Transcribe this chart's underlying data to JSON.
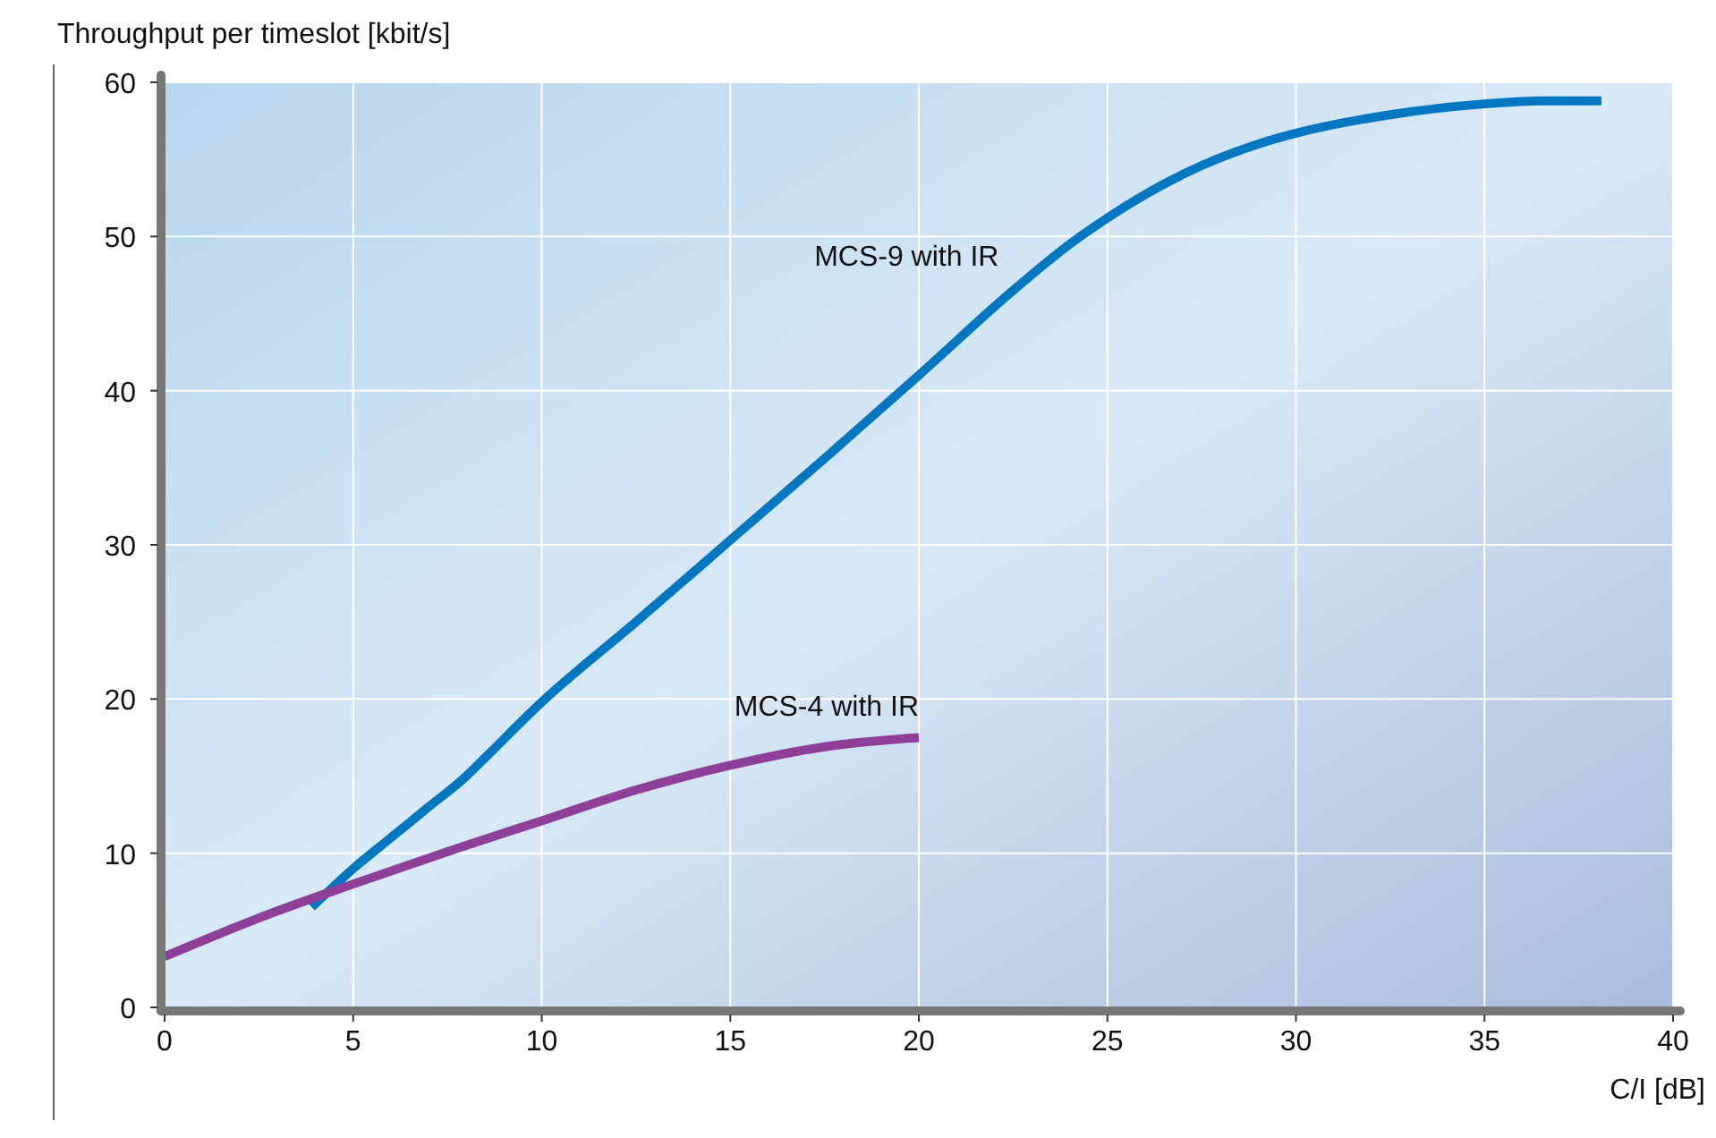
{
  "chart_data": {
    "type": "line",
    "ylabel": "Throughput per timeslot [kbit/s]",
    "xlabel": "C/I [dB]",
    "xlim": [
      0,
      40
    ],
    "ylim": [
      0,
      60
    ],
    "xticks": [
      0,
      5,
      10,
      15,
      20,
      25,
      30,
      35,
      40
    ],
    "yticks": [
      0,
      10,
      20,
      30,
      40,
      50,
      60
    ],
    "grid": true,
    "series": [
      {
        "name": "MCS-9 with IR",
        "color": "#0077c0",
        "x": [
          3.9,
          5,
          6,
          7,
          8,
          8.5,
          10,
          12.5,
          15,
          17.5,
          20,
          22.5,
          24,
          25,
          26.5,
          27.5,
          29,
          30,
          32.5,
          35,
          36.5,
          38.1
        ],
        "values": [
          6.5,
          9,
          11,
          13,
          15,
          16.2,
          19.8,
          25,
          30.3,
          35.6,
          41,
          46.5,
          49.5,
          51.2,
          53.4,
          54.6,
          56,
          56.7,
          57.9,
          58.6,
          58.8,
          58.8
        ]
      },
      {
        "name": "MCS-4 with IR",
        "color": "#8e3f98",
        "x": [
          0,
          2.5,
          5,
          7.5,
          10,
          12.5,
          15,
          17.5,
          20
        ],
        "values": [
          3.3,
          5.8,
          8,
          10.1,
          12.1,
          14.1,
          15.7,
          16.9,
          17.5
        ]
      }
    ]
  }
}
